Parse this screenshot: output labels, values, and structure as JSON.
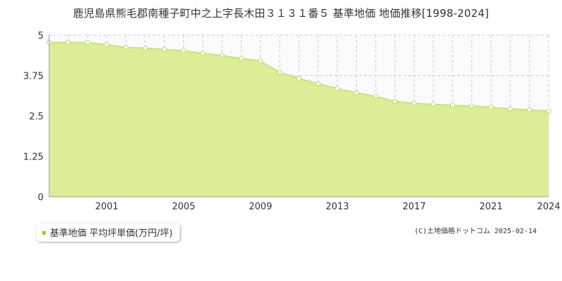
{
  "chart_data": {
    "type": "area",
    "title": "鹿児島県熊毛郡南種子町中之上字長木田３１３１番５ 基準地価 地価推移[1998-2024]",
    "x": [
      1998,
      1999,
      2000,
      2001,
      2002,
      2003,
      2004,
      2005,
      2006,
      2007,
      2008,
      2009,
      2010,
      2011,
      2012,
      2013,
      2014,
      2015,
      2016,
      2017,
      2018,
      2019,
      2020,
      2021,
      2022,
      2023,
      2024
    ],
    "x_tick_labels": [
      "2001",
      "2005",
      "2009",
      "2013",
      "2017",
      "2021",
      "2024"
    ],
    "y_tick_labels": [
      "0",
      "1.25",
      "2.5",
      "3.75",
      "5"
    ],
    "ylim": [
      0,
      5
    ],
    "series": [
      {
        "name": "基準地価 平均坪単価(万円/坪)",
        "values": [
          4.77,
          4.78,
          4.77,
          4.71,
          4.62,
          4.6,
          4.56,
          4.52,
          4.44,
          4.37,
          4.28,
          4.2,
          3.85,
          3.66,
          3.5,
          3.35,
          3.22,
          3.11,
          2.95,
          2.89,
          2.86,
          2.83,
          2.81,
          2.77,
          2.72,
          2.69,
          2.65
        ]
      }
    ],
    "grid": true,
    "legend_position": "bottom-left",
    "colors": {
      "line": "#c2de78",
      "fill": "#dbed96",
      "point_fill": "#ffffff",
      "legend_marker": "#9ecf1e",
      "grid": "#cccccc",
      "axis_text": "#333333"
    }
  },
  "legend": {
    "label": "基準地価 平均坪単価(万円/坪)"
  },
  "credit": "(C)土地価格ドットコム 2025-02-14"
}
